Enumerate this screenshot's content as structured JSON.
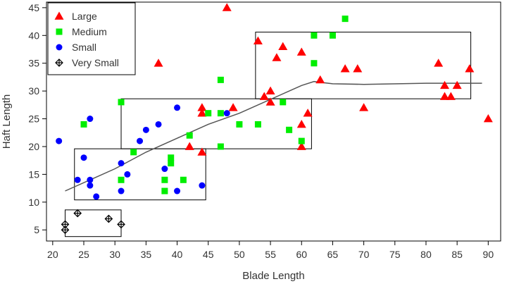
{
  "chart_data": {
    "type": "scatter",
    "title": "",
    "xlabel": "Blade Length",
    "ylabel": "Haft Length",
    "xlim": [
      19,
      92
    ],
    "ylim": [
      3,
      46
    ],
    "x_ticks": [
      "20",
      "25",
      "30",
      "35",
      "40",
      "45",
      "50",
      "55",
      "60",
      "65",
      "70",
      "75",
      "80",
      "85",
      "90"
    ],
    "y_ticks": [
      "5",
      "10",
      "15",
      "20",
      "25",
      "30",
      "35",
      "40",
      "45"
    ],
    "grid": false,
    "legend_position": "top-left",
    "series": [
      {
        "name": "Large",
        "marker": "triangle",
        "color": "#ff0000",
        "points": [
          [
            37,
            35
          ],
          [
            44,
            27
          ],
          [
            44,
            26
          ],
          [
            44,
            19
          ],
          [
            42,
            20
          ],
          [
            48,
            45
          ],
          [
            49,
            27
          ],
          [
            53,
            39
          ],
          [
            54,
            29
          ],
          [
            55,
            30
          ],
          [
            55,
            28
          ],
          [
            56,
            36
          ],
          [
            57,
            38
          ],
          [
            60,
            37
          ],
          [
            60,
            24
          ],
          [
            60,
            20
          ],
          [
            61,
            26
          ],
          [
            63,
            32
          ],
          [
            67,
            34
          ],
          [
            69,
            34
          ],
          [
            70,
            27
          ],
          [
            82,
            35
          ],
          [
            83,
            31
          ],
          [
            83,
            29
          ],
          [
            84,
            29
          ],
          [
            85,
            31
          ],
          [
            87,
            34
          ],
          [
            90,
            25
          ]
        ]
      },
      {
        "name": "Medium",
        "marker": "square",
        "color": "#00ee00",
        "points": [
          [
            25,
            24
          ],
          [
            31,
            28
          ],
          [
            31,
            14
          ],
          [
            33,
            19
          ],
          [
            38,
            14
          ],
          [
            38,
            12
          ],
          [
            39,
            18
          ],
          [
            39,
            17
          ],
          [
            41,
            14
          ],
          [
            42,
            22
          ],
          [
            45,
            26
          ],
          [
            47,
            32
          ],
          [
            47,
            26
          ],
          [
            47,
            20
          ],
          [
            50,
            24
          ],
          [
            53,
            24
          ],
          [
            57,
            28
          ],
          [
            58,
            23
          ],
          [
            60,
            21
          ],
          [
            62,
            40
          ],
          [
            62,
            35
          ],
          [
            65,
            40
          ],
          [
            67,
            43
          ]
        ]
      },
      {
        "name": "Small",
        "marker": "circle",
        "color": "#0000ff",
        "points": [
          [
            21,
            21
          ],
          [
            24,
            14
          ],
          [
            25,
            18
          ],
          [
            26,
            25
          ],
          [
            26,
            14
          ],
          [
            26,
            13
          ],
          [
            27,
            11
          ],
          [
            31,
            17
          ],
          [
            31,
            12
          ],
          [
            32,
            15
          ],
          [
            34,
            21
          ],
          [
            35,
            23
          ],
          [
            37,
            24
          ],
          [
            38,
            16
          ],
          [
            40,
            27
          ],
          [
            40,
            12
          ],
          [
            44,
            13
          ],
          [
            48,
            26
          ]
        ]
      },
      {
        "name": "Very Small",
        "marker": "diamond-plus",
        "color": "#000000",
        "points": [
          [
            22,
            5
          ],
          [
            22,
            6
          ],
          [
            24,
            8
          ],
          [
            29,
            7
          ],
          [
            31,
            6
          ]
        ]
      }
    ],
    "trend_line": [
      [
        22,
        12
      ],
      [
        26,
        14
      ],
      [
        30,
        16
      ],
      [
        35,
        19
      ],
      [
        40,
        21.5
      ],
      [
        45,
        24
      ],
      [
        50,
        26
      ],
      [
        55,
        28.5
      ],
      [
        60,
        31
      ],
      [
        62,
        31.7
      ],
      [
        65,
        31.3
      ],
      [
        70,
        31.2
      ],
      [
        80,
        31.4
      ],
      [
        89,
        31.4
      ]
    ],
    "boxes": [
      {
        "x": [
          22,
          31
        ],
        "y": [
          3.8,
          8.6
        ]
      },
      {
        "x": [
          23.5,
          44.6
        ],
        "y": [
          10.4,
          19.6
        ]
      },
      {
        "x": [
          31,
          61.6
        ],
        "y": [
          19.6,
          28.6
        ]
      },
      {
        "x": [
          52.6,
          87.2
        ],
        "y": [
          28.6,
          40.6
        ]
      }
    ]
  }
}
